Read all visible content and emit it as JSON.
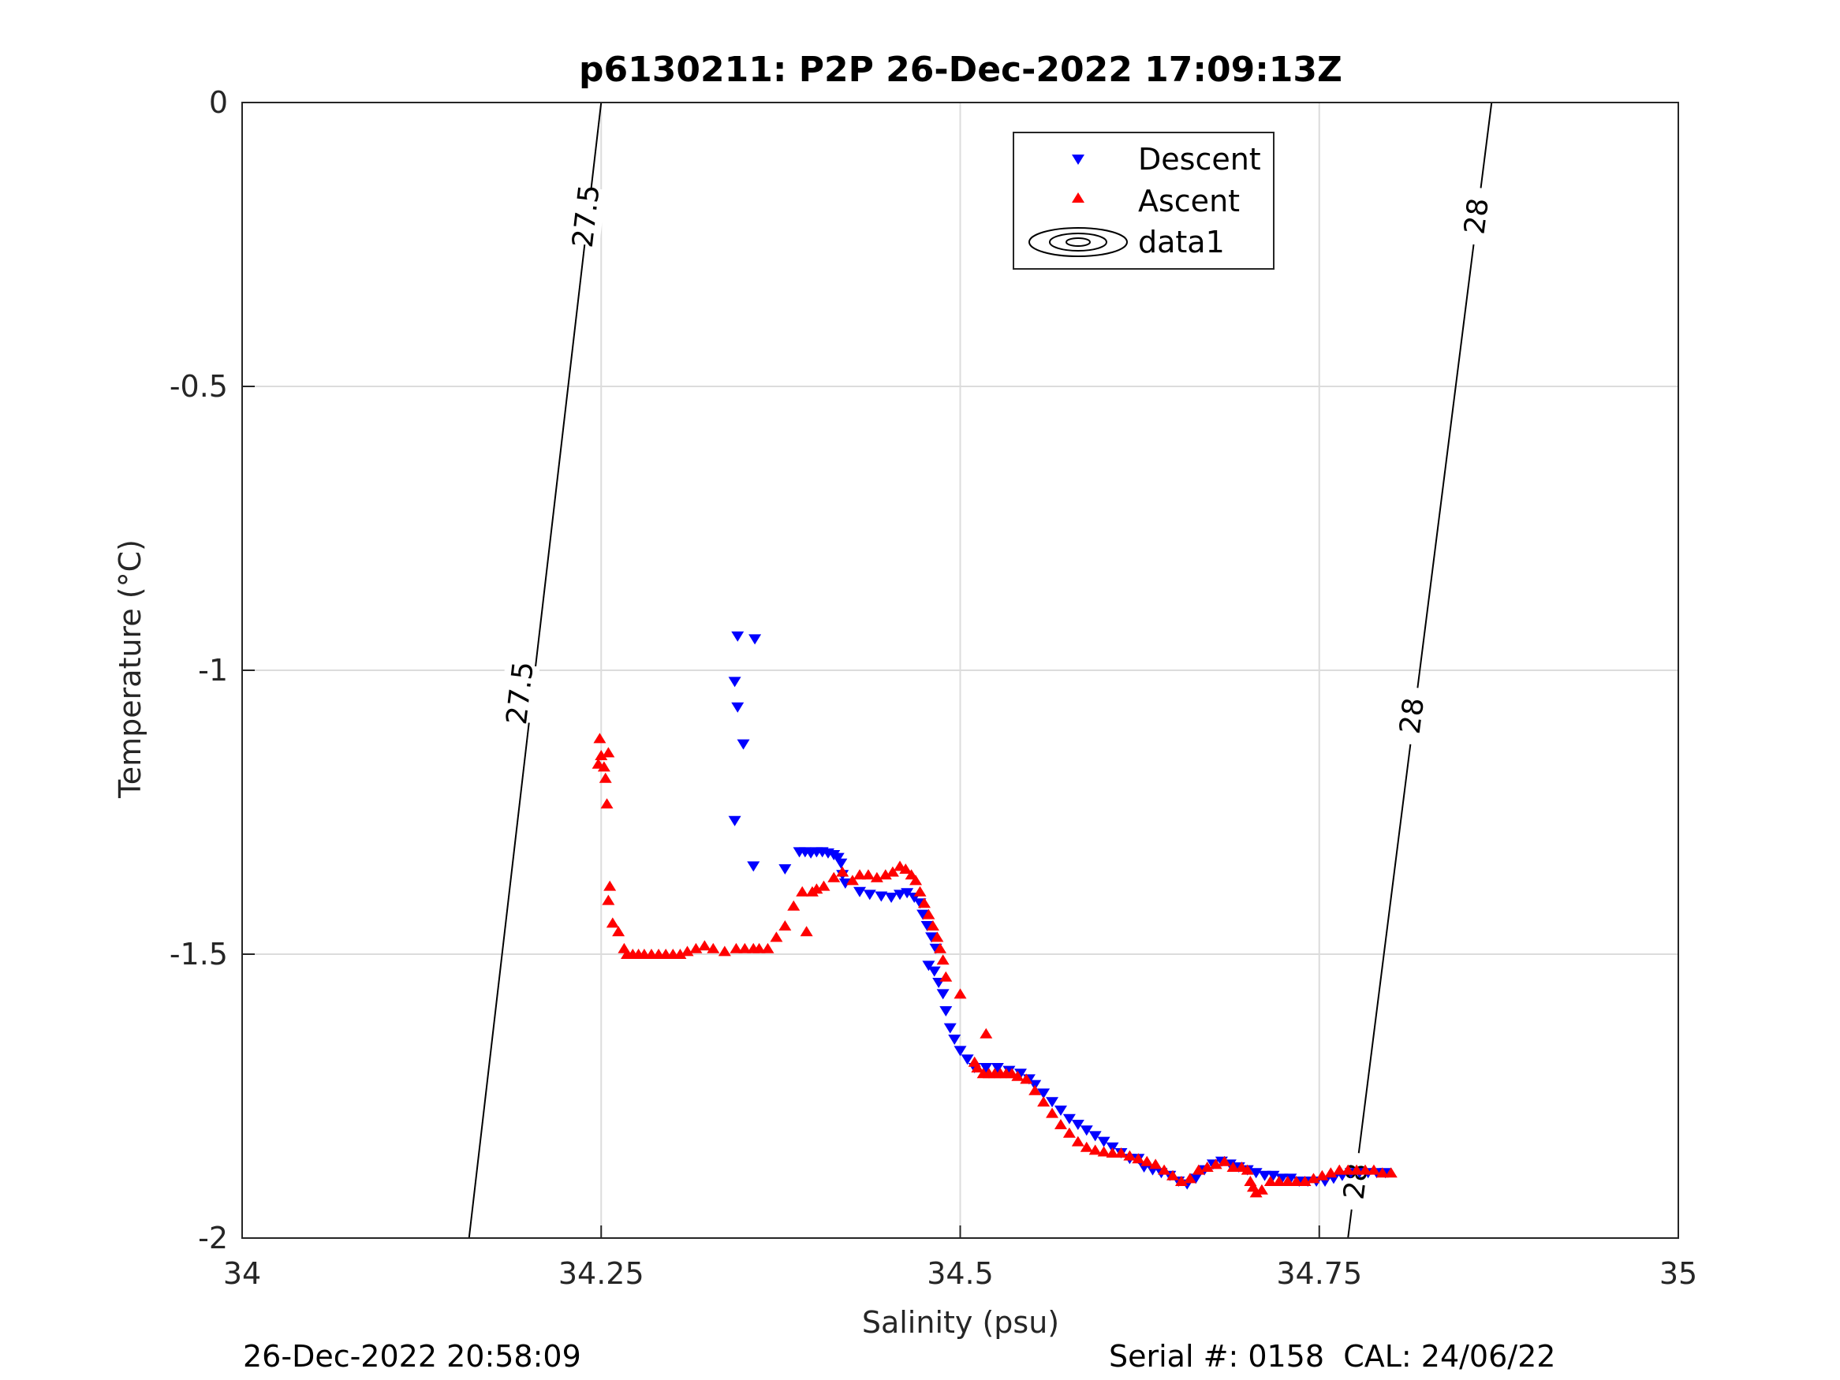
{
  "chart_data": {
    "type": "scatter",
    "title": "p6130211: P2P 26-Dec-2022 17:09:13Z",
    "xlabel": "Salinity (psu)",
    "ylabel": "Temperature (°C)",
    "xlim": [
      34,
      35
    ],
    "ylim": [
      -2,
      0
    ],
    "xticks": [
      34,
      34.25,
      34.5,
      34.75,
      35
    ],
    "xtick_labels": [
      "34",
      "34.25",
      "34.5",
      "34.75",
      "35"
    ],
    "yticks": [
      0,
      -0.5,
      -1,
      -1.5,
      -2
    ],
    "ytick_labels": [
      "0",
      "-0.5",
      "-1",
      "-1.5",
      "-2"
    ],
    "grid": true,
    "legend_position": "top-right",
    "legend": [
      "Descent",
      "Ascent",
      "data1"
    ],
    "colors": {
      "descent": "#0000ff",
      "ascent": "#ff0000",
      "contour": "#000000",
      "grid": "#dcdcdc"
    },
    "contours": [
      {
        "level": "27.5",
        "points": [
          [
            34.158,
            -2
          ],
          [
            34.25,
            0
          ]
        ],
        "labels": [
          {
            "x": 34.239,
            "y": -0.2
          },
          {
            "x": 34.193,
            "y": -1.04
          }
        ]
      },
      {
        "level": "28",
        "points": [
          [
            34.77,
            -2
          ],
          [
            34.87,
            0
          ]
        ],
        "labels": [
          {
            "x": 34.859,
            "y": -0.2
          },
          {
            "x": 34.814,
            "y": -1.08
          },
          {
            "x": 34.775,
            "y": -1.9
          }
        ]
      }
    ],
    "series": [
      {
        "name": "Descent",
        "marker": "triangle-down",
        "points": [
          [
            34.345,
            -0.94
          ],
          [
            34.357,
            -0.945
          ],
          [
            34.343,
            -1.02
          ],
          [
            34.345,
            -1.065
          ],
          [
            34.349,
            -1.13
          ],
          [
            34.343,
            -1.265
          ],
          [
            34.356,
            -1.345
          ],
          [
            34.378,
            -1.35
          ],
          [
            34.388,
            -1.32
          ],
          [
            34.392,
            -1.32
          ],
          [
            34.396,
            -1.322
          ],
          [
            34.4,
            -1.32
          ],
          [
            34.404,
            -1.32
          ],
          [
            34.408,
            -1.322
          ],
          [
            34.412,
            -1.325
          ],
          [
            34.415,
            -1.33
          ],
          [
            34.417,
            -1.34
          ],
          [
            34.418,
            -1.36
          ],
          [
            34.42,
            -1.375
          ],
          [
            34.43,
            -1.39
          ],
          [
            34.437,
            -1.395
          ],
          [
            34.445,
            -1.398
          ],
          [
            34.452,
            -1.4
          ],
          [
            34.458,
            -1.395
          ],
          [
            34.463,
            -1.392
          ],
          [
            34.468,
            -1.4
          ],
          [
            34.472,
            -1.41
          ],
          [
            34.474,
            -1.43
          ],
          [
            34.477,
            -1.45
          ],
          [
            34.48,
            -1.47
          ],
          [
            34.483,
            -1.49
          ],
          [
            34.478,
            -1.52
          ],
          [
            34.482,
            -1.53
          ],
          [
            34.485,
            -1.55
          ],
          [
            34.488,
            -1.57
          ],
          [
            34.49,
            -1.6
          ],
          [
            34.493,
            -1.63
          ],
          [
            34.496,
            -1.65
          ],
          [
            34.5,
            -1.67
          ],
          [
            34.505,
            -1.685
          ],
          [
            34.51,
            -1.7
          ],
          [
            34.518,
            -1.7
          ],
          [
            34.526,
            -1.7
          ],
          [
            34.534,
            -1.705
          ],
          [
            34.542,
            -1.71
          ],
          [
            34.548,
            -1.72
          ],
          [
            34.552,
            -1.73
          ],
          [
            34.558,
            -1.745
          ],
          [
            34.564,
            -1.76
          ],
          [
            34.57,
            -1.775
          ],
          [
            34.576,
            -1.79
          ],
          [
            34.582,
            -1.8
          ],
          [
            34.588,
            -1.81
          ],
          [
            34.594,
            -1.82
          ],
          [
            34.6,
            -1.83
          ],
          [
            34.606,
            -1.84
          ],
          [
            34.612,
            -1.85
          ],
          [
            34.618,
            -1.86
          ],
          [
            34.624,
            -1.86
          ],
          [
            34.628,
            -1.875
          ],
          [
            34.634,
            -1.88
          ],
          [
            34.64,
            -1.885
          ],
          [
            34.646,
            -1.89
          ],
          [
            34.652,
            -1.9
          ],
          [
            34.658,
            -1.905
          ],
          [
            34.664,
            -1.895
          ],
          [
            34.67,
            -1.88
          ],
          [
            34.676,
            -1.87
          ],
          [
            34.682,
            -1.865
          ],
          [
            34.688,
            -1.87
          ],
          [
            34.694,
            -1.875
          ],
          [
            34.7,
            -1.88
          ],
          [
            34.706,
            -1.885
          ],
          [
            34.712,
            -1.89
          ],
          [
            34.718,
            -1.89
          ],
          [
            34.724,
            -1.895
          ],
          [
            34.73,
            -1.895
          ],
          [
            34.736,
            -1.9
          ],
          [
            34.742,
            -1.9
          ],
          [
            34.748,
            -1.9
          ],
          [
            34.754,
            -1.9
          ],
          [
            34.76,
            -1.895
          ],
          [
            34.766,
            -1.89
          ],
          [
            34.772,
            -1.885
          ],
          [
            34.778,
            -1.885
          ],
          [
            34.784,
            -1.885
          ],
          [
            34.79,
            -1.885
          ],
          [
            34.796,
            -1.885
          ]
        ]
      },
      {
        "name": "Ascent",
        "marker": "triangle-up",
        "points": [
          [
            34.249,
            -1.12
          ],
          [
            34.25,
            -1.15
          ],
          [
            34.252,
            -1.17
          ],
          [
            34.248,
            -1.165
          ],
          [
            34.253,
            -1.19
          ],
          [
            34.255,
            -1.145
          ],
          [
            34.254,
            -1.235
          ],
          [
            34.256,
            -1.38
          ],
          [
            34.255,
            -1.405
          ],
          [
            34.258,
            -1.445
          ],
          [
            34.262,
            -1.46
          ],
          [
            34.266,
            -1.49
          ],
          [
            34.268,
            -1.5
          ],
          [
            34.272,
            -1.5
          ],
          [
            34.276,
            -1.5
          ],
          [
            34.28,
            -1.5
          ],
          [
            34.285,
            -1.5
          ],
          [
            34.29,
            -1.5
          ],
          [
            34.295,
            -1.5
          ],
          [
            34.3,
            -1.5
          ],
          [
            34.305,
            -1.5
          ],
          [
            34.31,
            -1.495
          ],
          [
            34.316,
            -1.49
          ],
          [
            34.322,
            -1.485
          ],
          [
            34.328,
            -1.49
          ],
          [
            34.336,
            -1.495
          ],
          [
            34.344,
            -1.49
          ],
          [
            34.35,
            -1.49
          ],
          [
            34.356,
            -1.49
          ],
          [
            34.36,
            -1.49
          ],
          [
            34.366,
            -1.49
          ],
          [
            34.372,
            -1.47
          ],
          [
            34.378,
            -1.45
          ],
          [
            34.384,
            -1.415
          ],
          [
            34.39,
            -1.39
          ],
          [
            34.393,
            -1.46
          ],
          [
            34.397,
            -1.39
          ],
          [
            34.4,
            -1.385
          ],
          [
            34.405,
            -1.38
          ],
          [
            34.412,
            -1.365
          ],
          [
            34.418,
            -1.355
          ],
          [
            34.425,
            -1.37
          ],
          [
            34.43,
            -1.36
          ],
          [
            34.436,
            -1.36
          ],
          [
            34.442,
            -1.365
          ],
          [
            34.448,
            -1.36
          ],
          [
            34.453,
            -1.355
          ],
          [
            34.458,
            -1.345
          ],
          [
            34.462,
            -1.35
          ],
          [
            34.466,
            -1.36
          ],
          [
            34.469,
            -1.37
          ],
          [
            34.472,
            -1.39
          ],
          [
            34.475,
            -1.41
          ],
          [
            34.478,
            -1.43
          ],
          [
            34.481,
            -1.45
          ],
          [
            34.484,
            -1.47
          ],
          [
            34.486,
            -1.49
          ],
          [
            34.488,
            -1.51
          ],
          [
            34.49,
            -1.54
          ],
          [
            34.5,
            -1.57
          ],
          [
            34.518,
            -1.64
          ],
          [
            34.51,
            -1.69
          ],
          [
            34.512,
            -1.7
          ],
          [
            34.516,
            -1.71
          ],
          [
            34.52,
            -1.71
          ],
          [
            34.524,
            -1.71
          ],
          [
            34.528,
            -1.71
          ],
          [
            34.532,
            -1.71
          ],
          [
            34.536,
            -1.71
          ],
          [
            34.54,
            -1.715
          ],
          [
            34.546,
            -1.72
          ],
          [
            34.552,
            -1.74
          ],
          [
            34.558,
            -1.76
          ],
          [
            34.564,
            -1.78
          ],
          [
            34.57,
            -1.8
          ],
          [
            34.576,
            -1.815
          ],
          [
            34.582,
            -1.83
          ],
          [
            34.588,
            -1.84
          ],
          [
            34.594,
            -1.845
          ],
          [
            34.6,
            -1.848
          ],
          [
            34.606,
            -1.85
          ],
          [
            34.612,
            -1.85
          ],
          [
            34.618,
            -1.855
          ],
          [
            34.624,
            -1.86
          ],
          [
            34.63,
            -1.865
          ],
          [
            34.636,
            -1.87
          ],
          [
            34.642,
            -1.88
          ],
          [
            34.648,
            -1.89
          ],
          [
            34.654,
            -1.9
          ],
          [
            34.66,
            -1.895
          ],
          [
            34.666,
            -1.88
          ],
          [
            34.672,
            -1.875
          ],
          [
            34.678,
            -1.87
          ],
          [
            34.684,
            -1.865
          ],
          [
            34.69,
            -1.875
          ],
          [
            34.696,
            -1.875
          ],
          [
            34.7,
            -1.88
          ],
          [
            34.702,
            -1.9
          ],
          [
            34.704,
            -1.91
          ],
          [
            34.706,
            -1.92
          ],
          [
            34.71,
            -1.915
          ],
          [
            34.716,
            -1.9
          ],
          [
            34.722,
            -1.9
          ],
          [
            34.728,
            -1.9
          ],
          [
            34.734,
            -1.9
          ],
          [
            34.74,
            -1.9
          ],
          [
            34.746,
            -1.895
          ],
          [
            34.752,
            -1.89
          ],
          [
            34.758,
            -1.885
          ],
          [
            34.764,
            -1.88
          ],
          [
            34.77,
            -1.88
          ],
          [
            34.776,
            -1.88
          ],
          [
            34.782,
            -1.88
          ],
          [
            34.788,
            -1.88
          ],
          [
            34.794,
            -1.885
          ],
          [
            34.8,
            -1.885
          ]
        ]
      }
    ]
  },
  "footer": {
    "timestamp": "26-Dec-2022 20:58:09",
    "serial": "Serial #: 0158  CAL: 24/06/22"
  }
}
